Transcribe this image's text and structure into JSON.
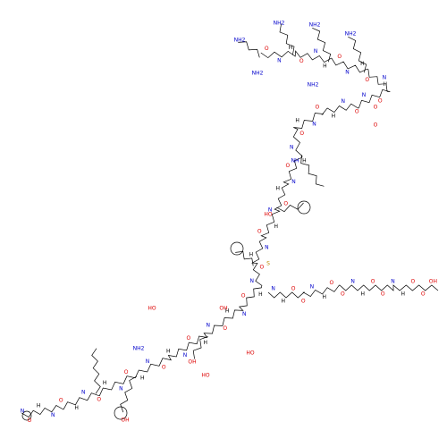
{
  "molecule": {
    "backbone_labels": [
      "O",
      "N",
      "H",
      "O",
      "N",
      "H",
      "O",
      "N",
      "H",
      "O",
      "N",
      "H",
      "O",
      "N",
      "O",
      "N",
      "H",
      "O",
      "N",
      "H",
      "O",
      "N",
      "H",
      "O",
      "N",
      "H",
      "O",
      "N",
      "H",
      "O",
      "N",
      "H",
      "O",
      "N",
      "H",
      "O",
      "N",
      "H",
      "O",
      "N",
      "H",
      "O",
      "N",
      "H",
      "O",
      "N",
      "H",
      "O",
      "N",
      "H",
      "O",
      "N",
      "H",
      "O",
      "N",
      "H",
      "O"
    ],
    "side_chain_labels": [
      "N",
      "H",
      "O",
      "O",
      "N",
      "H",
      "O",
      "O",
      "N",
      "H",
      "O",
      "O",
      "N",
      "H",
      "O",
      "O",
      "OH"
    ],
    "terminal_labels": [
      "NH2",
      "NH2",
      "NH2",
      "NH2",
      "NH2",
      "NH2",
      "O",
      "HO",
      "OH",
      "HO",
      "OH",
      "HO",
      "N",
      "NH",
      "S",
      "NH2",
      "OH",
      "O",
      "HO"
    ]
  }
}
